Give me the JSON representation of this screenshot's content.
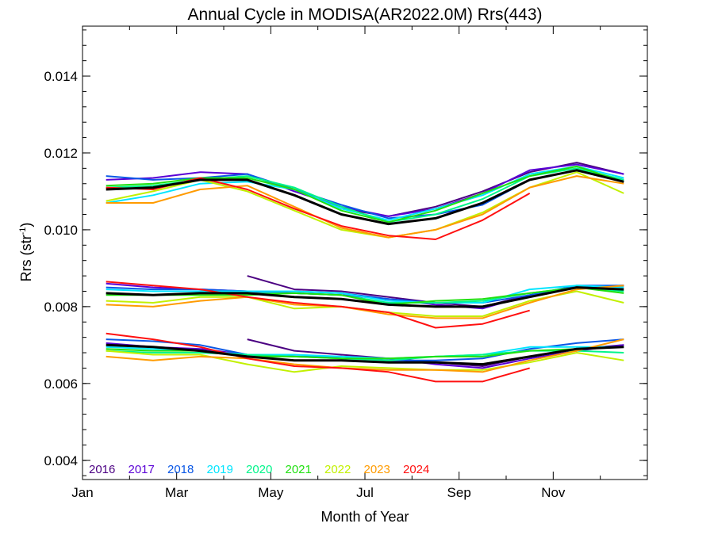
{
  "chart_data": {
    "type": "line",
    "title": "Annual Cycle in MODISA(AR2022.0M) Rrs(443)",
    "xlabel": "Month of Year",
    "ylabel": "Rrs (str",
    "ylabel_sup": "-1",
    "ylabel_close": ")",
    "xlim": [
      1,
      13
    ],
    "ylim": [
      0.0035,
      0.0153
    ],
    "x_ticks": [
      1,
      3,
      5,
      7,
      9,
      11
    ],
    "x_tick_labels": [
      "Jan",
      "Mar",
      "May",
      "Jul",
      "Sep",
      "Nov"
    ],
    "y_ticks": [
      0.004,
      0.006,
      0.008,
      0.01,
      0.012,
      0.014
    ],
    "y_tick_labels": [
      "0.004",
      "0.006",
      "0.008",
      "0.010",
      "0.012",
      "0.014"
    ],
    "months": [
      1.5,
      2.5,
      3.5,
      4.5,
      5.5,
      6.5,
      7.5,
      8.5,
      9.5,
      10.5,
      11.5,
      12.5
    ],
    "legend_position": "bottom-left",
    "series": [
      {
        "name": "2016",
        "color": "#4b0082",
        "upper": [
          null,
          null,
          null,
          null,
          null,
          10.55,
          10.35,
          10.6,
          11.0,
          11.5,
          11.75,
          11.45
        ],
        "middle": [
          null,
          null,
          null,
          8.8,
          8.45,
          8.4,
          8.25,
          8.1,
          8.0,
          8.3,
          8.5,
          8.55
        ],
        "lower": [
          null,
          null,
          null,
          7.15,
          6.85,
          6.75,
          6.65,
          6.55,
          6.45,
          6.7,
          6.9,
          7.0
        ]
      },
      {
        "name": "2017",
        "color": "#5a00d6",
        "upper": [
          11.3,
          11.35,
          11.5,
          11.45,
          11.0,
          10.6,
          10.35,
          10.55,
          10.95,
          11.55,
          11.7,
          11.45
        ],
        "middle": [
          8.6,
          8.5,
          8.45,
          8.4,
          8.35,
          8.3,
          8.2,
          8.05,
          7.95,
          8.3,
          8.5,
          8.55
        ],
        "lower": [
          7.05,
          6.95,
          6.9,
          6.75,
          6.7,
          6.7,
          6.65,
          6.5,
          6.4,
          6.65,
          6.85,
          7.0
        ]
      },
      {
        "name": "2018",
        "color": "#0a57e6",
        "upper": [
          11.4,
          11.3,
          11.35,
          11.45,
          11.05,
          10.65,
          10.3,
          10.4,
          10.65,
          11.3,
          11.55,
          11.3
        ],
        "middle": [
          8.5,
          8.45,
          8.45,
          8.4,
          8.4,
          8.35,
          8.2,
          8.1,
          8.1,
          8.3,
          8.55,
          8.55
        ],
        "lower": [
          7.15,
          7.1,
          7.0,
          6.75,
          6.7,
          6.7,
          6.6,
          6.6,
          6.65,
          6.9,
          7.05,
          7.15
        ]
      },
      {
        "name": "2019",
        "color": "#00e5ff",
        "upper": [
          10.7,
          10.9,
          11.2,
          11.25,
          11.05,
          10.55,
          10.25,
          10.55,
          10.9,
          11.45,
          11.65,
          11.35
        ],
        "middle": [
          8.45,
          8.4,
          8.4,
          8.4,
          8.4,
          8.35,
          8.15,
          8.1,
          8.1,
          8.45,
          8.55,
          8.5
        ],
        "lower": [
          6.95,
          6.9,
          6.85,
          6.75,
          6.75,
          6.7,
          6.65,
          6.7,
          6.75,
          6.95,
          6.95,
          6.95
        ]
      },
      {
        "name": "2020",
        "color": "#00f58a",
        "upper": [
          11.1,
          11.15,
          11.3,
          11.4,
          11.1,
          10.6,
          10.2,
          10.4,
          10.8,
          11.4,
          11.6,
          11.3
        ],
        "middle": [
          8.35,
          8.3,
          8.35,
          8.35,
          8.35,
          8.3,
          8.1,
          8.1,
          8.15,
          8.35,
          8.5,
          8.4
        ],
        "lower": [
          6.85,
          6.8,
          6.8,
          6.75,
          6.7,
          6.65,
          6.6,
          6.7,
          6.75,
          6.85,
          6.85,
          6.8
        ]
      },
      {
        "name": "2021",
        "color": "#20e010",
        "upper": [
          11.15,
          11.2,
          11.35,
          11.35,
          11.05,
          10.5,
          10.2,
          10.5,
          10.95,
          11.4,
          11.65,
          11.25
        ],
        "middle": [
          8.3,
          8.3,
          8.3,
          8.3,
          8.35,
          8.3,
          8.05,
          8.15,
          8.2,
          8.35,
          8.5,
          8.35
        ],
        "lower": [
          6.9,
          6.85,
          6.85,
          6.7,
          6.7,
          6.65,
          6.65,
          6.7,
          6.7,
          6.85,
          6.9,
          6.95
        ]
      },
      {
        "name": "2022",
        "color": "#c2f000",
        "upper": [
          10.75,
          11.0,
          11.3,
          11.0,
          10.5,
          10.0,
          9.8,
          10.0,
          10.45,
          11.1,
          11.5,
          10.95
        ],
        "middle": [
          8.15,
          8.1,
          8.25,
          8.25,
          7.95,
          8.0,
          7.85,
          7.75,
          7.75,
          8.15,
          8.4,
          8.1
        ],
        "lower": [
          6.85,
          6.75,
          6.75,
          6.5,
          6.3,
          6.45,
          6.4,
          6.35,
          6.35,
          6.55,
          6.8,
          6.6
        ]
      },
      {
        "name": "2023",
        "color": "#ff9b00",
        "upper": [
          10.7,
          10.7,
          11.05,
          11.15,
          10.6,
          10.05,
          9.8,
          10.0,
          10.4,
          11.1,
          11.4,
          11.2
        ],
        "middle": [
          8.05,
          8.0,
          8.15,
          8.25,
          8.05,
          8.0,
          7.8,
          7.7,
          7.7,
          8.1,
          8.45,
          8.55
        ],
        "lower": [
          6.7,
          6.6,
          6.7,
          6.65,
          6.5,
          6.4,
          6.35,
          6.35,
          6.3,
          6.6,
          6.85,
          7.15
        ]
      },
      {
        "name": "2024",
        "color": "#ff1010",
        "upper": [
          11.1,
          11.05,
          11.35,
          11.05,
          10.55,
          10.1,
          9.85,
          9.75,
          10.25,
          10.95,
          null,
          null
        ],
        "middle": [
          8.65,
          8.55,
          8.45,
          8.25,
          8.1,
          8.0,
          7.85,
          7.45,
          7.55,
          7.9,
          null,
          null
        ],
        "lower": [
          7.3,
          7.15,
          6.95,
          6.65,
          6.45,
          6.4,
          6.3,
          6.05,
          6.05,
          6.4,
          null,
          null
        ]
      },
      {
        "name": "",
        "color": "#000000",
        "upper": [
          11.05,
          11.1,
          11.3,
          11.3,
          10.9,
          10.4,
          10.15,
          10.3,
          10.7,
          11.3,
          11.55,
          11.25
        ],
        "middle": [
          8.35,
          8.3,
          8.35,
          8.35,
          8.25,
          8.2,
          8.05,
          8.0,
          8.0,
          8.25,
          8.5,
          8.45
        ],
        "lower": [
          7.0,
          6.95,
          6.85,
          6.7,
          6.6,
          6.6,
          6.55,
          6.55,
          6.5,
          6.7,
          6.9,
          6.95
        ]
      }
    ]
  }
}
